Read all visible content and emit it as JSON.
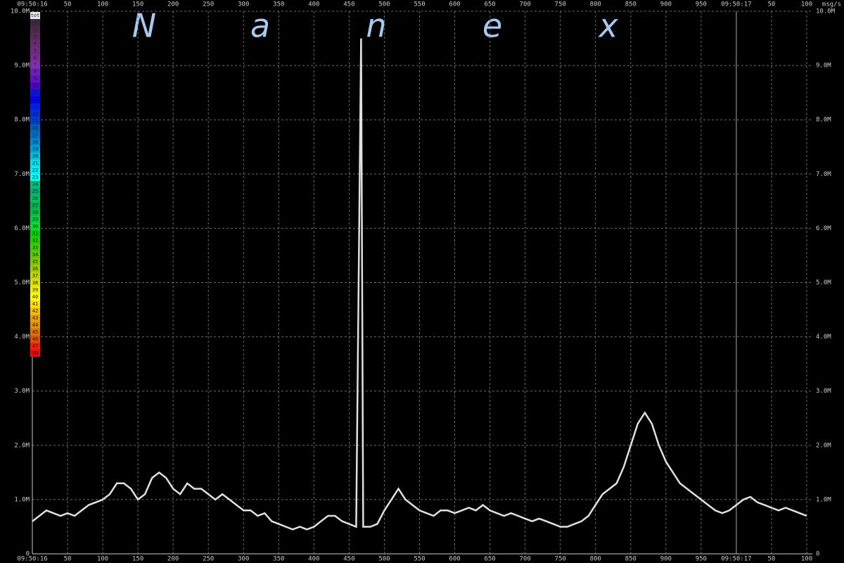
{
  "chart_data": {
    "type": "line",
    "watermark": [
      "N",
      "a",
      "n",
      "e",
      "x"
    ],
    "unit_label": "msg/s",
    "x": [
      0,
      10,
      20,
      30,
      40,
      50,
      60,
      70,
      80,
      90,
      100,
      110,
      120,
      130,
      140,
      150,
      160,
      170,
      180,
      190,
      200,
      210,
      220,
      230,
      240,
      250,
      260,
      270,
      280,
      290,
      300,
      310,
      320,
      330,
      340,
      350,
      360,
      370,
      380,
      390,
      400,
      410,
      420,
      430,
      440,
      450,
      460,
      467,
      470,
      480,
      490,
      500,
      510,
      520,
      530,
      540,
      550,
      560,
      570,
      580,
      590,
      600,
      610,
      620,
      630,
      640,
      650,
      660,
      670,
      680,
      690,
      700,
      710,
      720,
      730,
      740,
      750,
      760,
      770,
      780,
      790,
      800,
      810,
      820,
      830,
      840,
      850,
      860,
      870,
      880,
      890,
      900,
      910,
      920,
      930,
      940,
      950,
      960,
      970,
      980,
      990,
      1000,
      1010,
      1020,
      1030,
      1040,
      1050,
      1060,
      1070,
      1080,
      1090,
      1100
    ],
    "series": [
      {
        "name": "tot",
        "color": "#e0e0e0",
        "values": [
          600000,
          700000,
          800000,
          750000,
          700000,
          750000,
          700000,
          800000,
          900000,
          950000,
          1000000,
          1100000,
          1300000,
          1300000,
          1200000,
          1000000,
          1100000,
          1400000,
          1500000,
          1400000,
          1200000,
          1100000,
          1300000,
          1200000,
          1200000,
          1100000,
          1000000,
          1100000,
          1000000,
          900000,
          800000,
          800000,
          700000,
          750000,
          600000,
          550000,
          500000,
          450000,
          500000,
          450000,
          500000,
          600000,
          700000,
          700000,
          600000,
          550000,
          500000,
          9500000,
          500000,
          500000,
          550000,
          800000,
          1000000,
          1200000,
          1000000,
          900000,
          800000,
          750000,
          700000,
          800000,
          800000,
          750000,
          800000,
          850000,
          800000,
          900000,
          800000,
          750000,
          700000,
          750000,
          700000,
          650000,
          600000,
          650000,
          600000,
          550000,
          500000,
          500000,
          550000,
          600000,
          700000,
          900000,
          1100000,
          1200000,
          1300000,
          1600000,
          2000000,
          2400000,
          2600000,
          2400000,
          2000000,
          1700000,
          1500000,
          1300000,
          1200000,
          1100000,
          1000000,
          900000,
          800000,
          750000,
          800000,
          900000,
          1000000,
          1050000,
          950000,
          900000,
          850000,
          800000,
          850000,
          800000,
          750000,
          700000
        ]
      }
    ],
    "legend": [
      {
        "name": "tot",
        "color": "#e8e8e8"
      },
      {
        "name": "1",
        "color": "#3a2a3a"
      },
      {
        "name": "2",
        "color": "#4a2a4a"
      },
      {
        "name": "3",
        "color": "#5a2a5a"
      },
      {
        "name": "4",
        "color": "#6a2a70"
      },
      {
        "name": "5",
        "color": "#702a80"
      },
      {
        "name": "6",
        "color": "#7a2a90"
      },
      {
        "name": "7",
        "color": "#8030b0"
      },
      {
        "name": "8",
        "color": "#7020b8"
      },
      {
        "name": "9",
        "color": "#6010c0"
      },
      {
        "name": "10",
        "color": "#5000c8"
      },
      {
        "name": "11",
        "color": "#1010e0"
      },
      {
        "name": "12",
        "color": "#0000f0"
      },
      {
        "name": "13",
        "color": "#0020f0"
      },
      {
        "name": "14",
        "color": "#0030e0"
      },
      {
        "name": "15",
        "color": "#0040d0"
      },
      {
        "name": "16",
        "color": "#0060c0"
      },
      {
        "name": "17",
        "color": "#0070c8"
      },
      {
        "name": "18",
        "color": "#0088d0"
      },
      {
        "name": "19",
        "color": "#00a0d8"
      },
      {
        "name": "20",
        "color": "#00c0e0"
      },
      {
        "name": "21",
        "color": "#00e0f0"
      },
      {
        "name": "22",
        "color": "#00f0f8"
      },
      {
        "name": "23",
        "color": "#00ffff"
      },
      {
        "name": "24",
        "color": "#00c080"
      },
      {
        "name": "25",
        "color": "#00b070"
      },
      {
        "name": "26",
        "color": "#00c060"
      },
      {
        "name": "27",
        "color": "#00b050"
      },
      {
        "name": "28",
        "color": "#00c048"
      },
      {
        "name": "29",
        "color": "#00d040"
      },
      {
        "name": "30",
        "color": "#00e030"
      },
      {
        "name": "31",
        "color": "#00d000"
      },
      {
        "name": "32",
        "color": "#20d000"
      },
      {
        "name": "33",
        "color": "#40d000"
      },
      {
        "name": "34",
        "color": "#60c800"
      },
      {
        "name": "35",
        "color": "#80c800"
      },
      {
        "name": "36",
        "color": "#a0d000"
      },
      {
        "name": "37",
        "color": "#c0d800"
      },
      {
        "name": "38",
        "color": "#e0e000"
      },
      {
        "name": "39",
        "color": "#f0f000"
      },
      {
        "name": "40",
        "color": "#ffff00"
      },
      {
        "name": "41",
        "color": "#ffe000"
      },
      {
        "name": "42",
        "color": "#f0c000"
      },
      {
        "name": "43",
        "color": "#e8a000"
      },
      {
        "name": "44",
        "color": "#e09000"
      },
      {
        "name": "45",
        "color": "#e07000"
      },
      {
        "name": "46",
        "color": "#e05000"
      },
      {
        "name": "47",
        "color": "#f02000"
      },
      {
        "name": "48",
        "color": "#ff0000"
      }
    ],
    "xlim": [
      0,
      1108
    ],
    "xticks": [
      {
        "value": 0,
        "label": "09:50:16"
      },
      50,
      100,
      150,
      200,
      250,
      300,
      350,
      400,
      450,
      500,
      550,
      600,
      650,
      700,
      750,
      800,
      850,
      900,
      950,
      {
        "value": 1000,
        "label": "09:50:17"
      },
      {
        "value": 1050,
        "label": "50"
      },
      {
        "value": 1100,
        "label": "100"
      }
    ],
    "ylim": [
      0,
      10000000
    ],
    "yticks": [
      0,
      {
        "value": 1000000,
        "label": "1.0M"
      },
      {
        "value": 2000000,
        "label": "2.0M"
      },
      {
        "value": 3000000,
        "label": "3.0M"
      },
      {
        "value": 4000000,
        "label": "4.0M"
      },
      {
        "value": 5000000,
        "label": "5.0M"
      },
      {
        "value": 6000000,
        "label": "6.0M"
      },
      {
        "value": 7000000,
        "label": "7.0M"
      },
      {
        "value": 8000000,
        "label": "8.0M"
      },
      {
        "value": 9000000,
        "label": "9.0M"
      },
      {
        "value": 10000000,
        "label": "10.0M"
      }
    ],
    "grid": true
  }
}
